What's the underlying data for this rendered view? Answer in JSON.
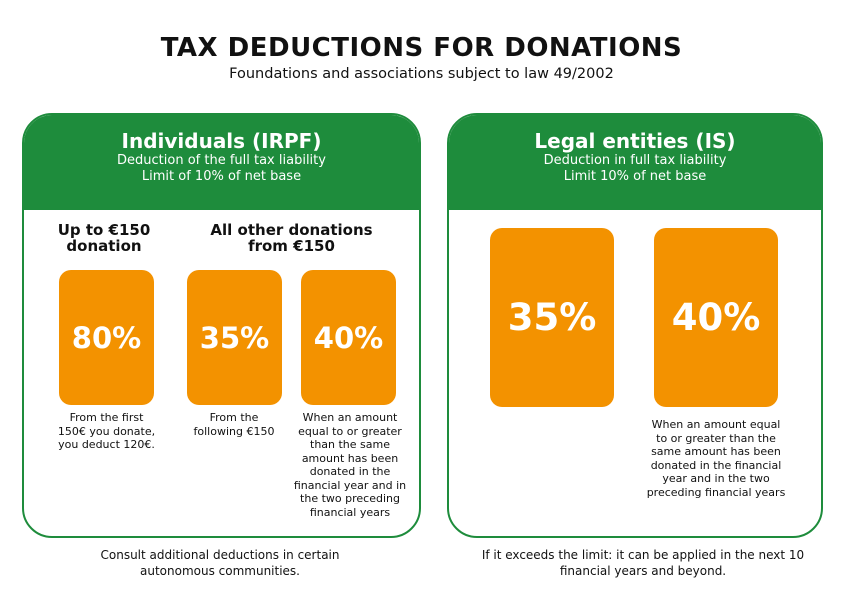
{
  "title": "TAX DEDUCTIONS FOR DONATIONS",
  "subtitle": "Foundations and associations subject to law 49/2002",
  "individuals": {
    "heading": "Individuals (IRPF)",
    "line1": "Deduction of the full tax liability",
    "line2": "Limit of 10% of net base",
    "col1_header_line1": "Up to €150",
    "col1_header_line2": "donation",
    "col2_header_line1": "All other donations",
    "col2_header_line2": "from €150",
    "boxes": [
      {
        "value": "80%",
        "caption_lines": [
          "From the first",
          "150€ you donate,",
          "you deduct 120€."
        ]
      },
      {
        "value": "35%",
        "caption_lines": [
          "From the",
          "following €150"
        ]
      },
      {
        "value": "40%",
        "caption_lines": [
          "When an amount",
          "equal to or greater",
          "than the same",
          "amount has been",
          "donated in the",
          "financial year and in",
          "the two preceding",
          "financial years"
        ]
      }
    ],
    "footer_line1": "Consult additional deductions in certain",
    "footer_line2": "autonomous communities."
  },
  "legal": {
    "heading": "Legal entities (IS)",
    "line1": "Deduction in full tax liability",
    "line2": "Limit 10% of net base",
    "boxes": [
      {
        "value": "35%"
      },
      {
        "value": "40%",
        "caption_lines": [
          "When an amount equal",
          "to or greater than the",
          "same amount has been",
          "donated in the financial",
          "year and in the two",
          "preceding financial years"
        ]
      }
    ],
    "footer_line1": "If it exceeds the limit: it can be applied in the next 10",
    "footer_line2": "financial years and beyond."
  },
  "colors": {
    "green": "#1e8c3c",
    "orange": "#f39200"
  }
}
